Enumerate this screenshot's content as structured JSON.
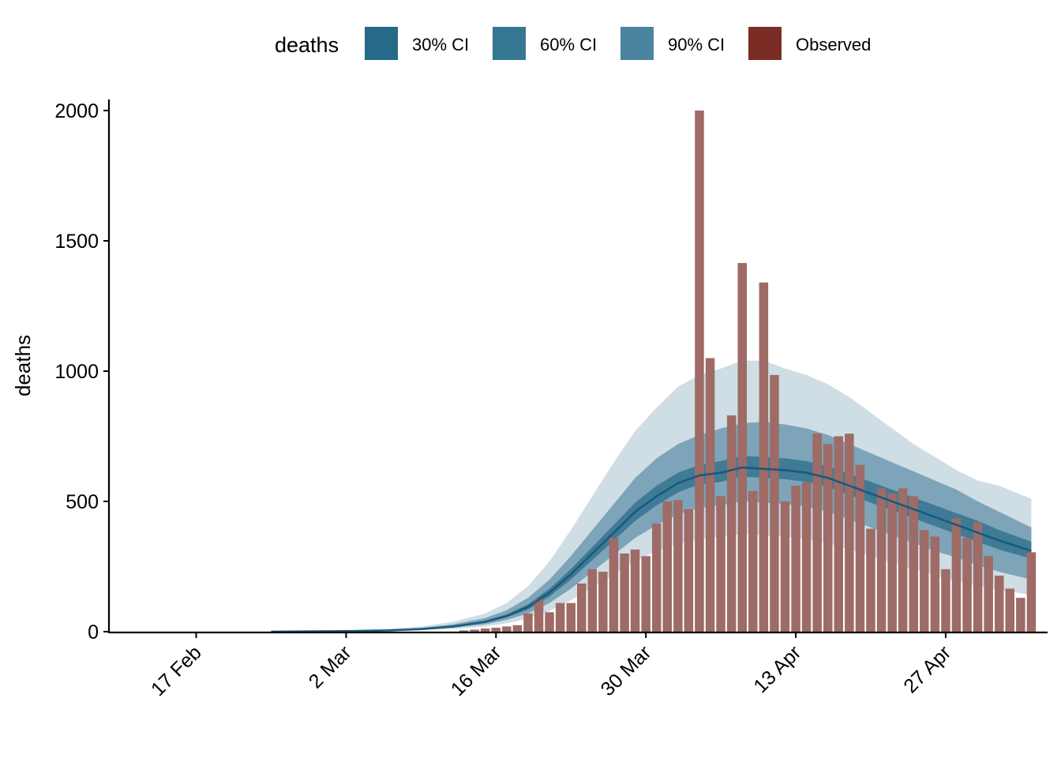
{
  "chart_data": {
    "type": "bar",
    "title": "",
    "ylabel": "deaths",
    "xlabel": "",
    "ylim": [
      0,
      2050
    ],
    "y_ticks": [
      0,
      500,
      1000,
      1500,
      2000
    ],
    "x_start": "2020-02-09",
    "x_end": "2020-05-06",
    "x_ticks": [
      {
        "date": "2020-02-17",
        "label": "17 Feb"
      },
      {
        "date": "2020-03-02",
        "label": "2 Mar"
      },
      {
        "date": "2020-03-16",
        "label": "16 Mar"
      },
      {
        "date": "2020-03-30",
        "label": "30 Mar"
      },
      {
        "date": "2020-04-13",
        "label": "13 Apr"
      },
      {
        "date": "2020-04-27",
        "label": "27 Apr"
      }
    ],
    "grid": false,
    "legend": {
      "title": "deaths",
      "position": "top",
      "items": [
        {
          "label": "30% CI",
          "color": "#256a89"
        },
        {
          "label": "60% CI",
          "color": "#357793"
        },
        {
          "label": "90% CI",
          "color": "#4a849e"
        },
        {
          "label": "Observed",
          "color": "#7b2d25"
        }
      ]
    },
    "colors": {
      "band_90": "#cfdde4",
      "band_60": "#7da4b8",
      "band_30": "#3f7a96",
      "median": "#1a5a7a",
      "bar": "#9e6b66"
    },
    "observed": {
      "name": "Observed",
      "dates": [
        "2020-03-13",
        "2020-03-14",
        "2020-03-15",
        "2020-03-16",
        "2020-03-17",
        "2020-03-18",
        "2020-03-19",
        "2020-03-20",
        "2020-03-21",
        "2020-03-22",
        "2020-03-23",
        "2020-03-24",
        "2020-03-25",
        "2020-03-26",
        "2020-03-27",
        "2020-03-28",
        "2020-03-29",
        "2020-03-30",
        "2020-03-31",
        "2020-04-01",
        "2020-04-02",
        "2020-04-03",
        "2020-04-04",
        "2020-04-05",
        "2020-04-06",
        "2020-04-07",
        "2020-04-08",
        "2020-04-09",
        "2020-04-10",
        "2020-04-11",
        "2020-04-12",
        "2020-04-13",
        "2020-04-14",
        "2020-04-15",
        "2020-04-16",
        "2020-04-17",
        "2020-04-18",
        "2020-04-19",
        "2020-04-20",
        "2020-04-21",
        "2020-04-22",
        "2020-04-23",
        "2020-04-24",
        "2020-04-25",
        "2020-04-26",
        "2020-04-27",
        "2020-04-28",
        "2020-04-29",
        "2020-04-30",
        "2020-05-01",
        "2020-05-02",
        "2020-05-03",
        "2020-05-04",
        "2020-05-05"
      ],
      "values": [
        5,
        8,
        12,
        15,
        20,
        25,
        70,
        125,
        75,
        110,
        110,
        185,
        240,
        230,
        360,
        300,
        315,
        290,
        415,
        500,
        505,
        470,
        2000,
        1050,
        520,
        830,
        1415,
        540,
        1340,
        985,
        500,
        560,
        575,
        760,
        720,
        750,
        760,
        640,
        395,
        550,
        530,
        550,
        520,
        390,
        365,
        240,
        435,
        360,
        420,
        290,
        215,
        165,
        130,
        305
      ]
    },
    "bands": {
      "dates": [
        "2020-02-24",
        "2020-03-02",
        "2020-03-06",
        "2020-03-09",
        "2020-03-12",
        "2020-03-15",
        "2020-03-17",
        "2020-03-19",
        "2020-03-21",
        "2020-03-23",
        "2020-03-25",
        "2020-03-27",
        "2020-03-29",
        "2020-03-31",
        "2020-04-02",
        "2020-04-04",
        "2020-04-06",
        "2020-04-08",
        "2020-04-10",
        "2020-04-12",
        "2020-04-14",
        "2020-04-16",
        "2020-04-18",
        "2020-04-20",
        "2020-04-22",
        "2020-04-24",
        "2020-04-26",
        "2020-04-28",
        "2020-04-30",
        "2020-05-02",
        "2020-05-05"
      ],
      "median": [
        0,
        2,
        5,
        10,
        20,
        38,
        60,
        95,
        150,
        220,
        300,
        380,
        460,
        520,
        570,
        600,
        610,
        630,
        625,
        620,
        610,
        590,
        560,
        530,
        500,
        470,
        440,
        410,
        380,
        350,
        310
      ],
      "low_30": [
        0,
        2,
        4,
        9,
        18,
        34,
        55,
        85,
        135,
        200,
        275,
        350,
        425,
        485,
        535,
        565,
        575,
        595,
        590,
        585,
        575,
        555,
        525,
        495,
        465,
        435,
        405,
        375,
        345,
        315,
        280
      ],
      "high_30": [
        0,
        3,
        6,
        11,
        22,
        42,
        66,
        105,
        165,
        240,
        325,
        410,
        495,
        560,
        610,
        640,
        655,
        675,
        670,
        665,
        655,
        635,
        605,
        575,
        545,
        515,
        485,
        455,
        425,
        390,
        345
      ],
      "low_60": [
        0,
        1,
        3,
        7,
        15,
        28,
        45,
        70,
        110,
        165,
        230,
        295,
        360,
        410,
        450,
        475,
        485,
        500,
        495,
        490,
        480,
        460,
        430,
        400,
        370,
        340,
        310,
        285,
        255,
        230,
        200
      ],
      "high_60": [
        0,
        4,
        8,
        14,
        28,
        52,
        82,
        130,
        200,
        290,
        390,
        490,
        590,
        665,
        720,
        755,
        780,
        800,
        805,
        795,
        780,
        755,
        720,
        685,
        650,
        615,
        580,
        545,
        500,
        460,
        400
      ],
      "low_90": [
        0,
        1,
        2,
        5,
        10,
        20,
        32,
        50,
        80,
        120,
        170,
        220,
        270,
        310,
        335,
        355,
        365,
        375,
        370,
        365,
        355,
        340,
        315,
        290,
        265,
        240,
        215,
        195,
        175,
        160,
        140
      ],
      "high_90": [
        0,
        5,
        11,
        20,
        38,
        70,
        110,
        175,
        270,
        390,
        520,
        650,
        770,
        860,
        940,
        985,
        1010,
        1040,
        1040,
        1010,
        985,
        950,
        900,
        840,
        780,
        720,
        670,
        620,
        580,
        560,
        510
      ]
    }
  }
}
